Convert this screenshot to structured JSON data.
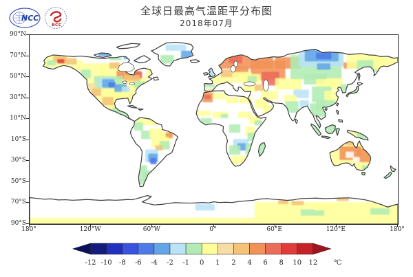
{
  "header": {
    "title": "全球日最高气温距平分布图",
    "subtitle": "2018年07月",
    "logo_ncc": "NCC",
    "logo_bcc": "BCC"
  },
  "axes": {
    "lat_labels": [
      "90°N",
      "70°N",
      "50°N",
      "30°N",
      "10°N",
      "10°S",
      "30°S",
      "50°S",
      "70°S",
      "90°S"
    ],
    "lat_values": [
      90,
      70,
      50,
      30,
      10,
      -10,
      -30,
      -50,
      -70,
      -90
    ],
    "lon_labels": [
      "180°",
      "120°W",
      "60°W",
      "0°",
      "60°E",
      "120°E",
      "180°"
    ],
    "lon_values": [
      -180,
      -120,
      -60,
      0,
      60,
      120,
      180
    ]
  },
  "colorbar": {
    "unit": "℃",
    "tick_labels": [
      "-12",
      "-10",
      "-8",
      "-6",
      "-4",
      "-2",
      "-1",
      "0",
      "1",
      "2",
      "4",
      "6",
      "8",
      "10",
      "12"
    ],
    "levels": [
      -12,
      -10,
      -8,
      -6,
      -4,
      -2,
      -1,
      0,
      1,
      2,
      4,
      6,
      8,
      10,
      12
    ],
    "colors": [
      "#131c7e",
      "#2230bf",
      "#3952e0",
      "#4e7ae8",
      "#63a6e8",
      "#b9e3f6",
      "#b2ecb4",
      "#ffff99",
      "#f6dda4",
      "#f5c378",
      "#f29257",
      "#ec6c5a",
      "#e13c39",
      "#c52127"
    ],
    "arrow_low": "#0a1260",
    "arrow_high": "#a21320"
  },
  "chart_data": {
    "type": "heatmap",
    "title": "全球日最高气温距平分布图",
    "subtitle": "2018年07月",
    "unit": "°C anomaly",
    "projection": "equirectangular",
    "lon_range": [
      -180,
      180
    ],
    "lat_range": [
      -90,
      90
    ],
    "legend_levels": [
      -12,
      -10,
      -8,
      -6,
      -4,
      -2,
      -1,
      0,
      1,
      2,
      4,
      6,
      8,
      10,
      12
    ],
    "cells": [
      [
        -168,
        71,
        26,
        12,
        0.5
      ],
      [
        -128,
        63,
        22,
        12,
        0.5
      ],
      [
        -112,
        63,
        30,
        12,
        0.5
      ],
      [
        -140,
        66,
        12,
        10,
        0.5
      ],
      [
        -125,
        50,
        60,
        26,
        0.8
      ],
      [
        -105,
        25,
        15,
        8,
        0.5
      ],
      [
        -66,
        58,
        9,
        9,
        0.5
      ],
      [
        -163,
        66,
        9,
        5,
        -0.8
      ],
      [
        -157,
        70,
        13,
        5,
        3
      ],
      [
        -153,
        67,
        7,
        4,
        8.5
      ],
      [
        -146,
        68,
        12,
        6,
        3
      ],
      [
        -132,
        79,
        11,
        5,
        10.5
      ],
      [
        -134,
        74,
        8,
        4,
        6.5
      ],
      [
        -113,
        77,
        24,
        7,
        -2.5
      ],
      [
        -88,
        74,
        16,
        7,
        -2.5
      ],
      [
        -102,
        71,
        12,
        5,
        -0.8
      ],
      [
        -130,
        57,
        10,
        8,
        -0.8
      ],
      [
        -102,
        64,
        10,
        6,
        3
      ],
      [
        -95,
        56,
        24,
        8,
        4.5
      ],
      [
        -79,
        55,
        9,
        6,
        6.5
      ],
      [
        -88,
        52,
        16,
        6,
        3
      ],
      [
        -117,
        51,
        28,
        12,
        -0.8
      ],
      [
        -113,
        49,
        14,
        8,
        -1.5
      ],
      [
        -109,
        48,
        12,
        8,
        -3
      ],
      [
        -103,
        45,
        7,
        5,
        -4.5
      ],
      [
        -97,
        43,
        12,
        8,
        -3
      ],
      [
        -90,
        41,
        8,
        6,
        -1.5
      ],
      [
        -124,
        44,
        9,
        12,
        1.5
      ],
      [
        -119,
        39,
        9,
        7,
        2.5
      ],
      [
        -106,
        36,
        24,
        10,
        0.5
      ],
      [
        -78,
        46,
        10,
        6,
        -0.8
      ],
      [
        -83,
        31,
        6,
        6,
        0.5
      ],
      [
        -109,
        31,
        11,
        8,
        3
      ],
      [
        -99,
        21,
        9,
        5,
        -0.8
      ],
      [
        -92,
        18,
        11,
        7,
        -0.8
      ],
      [
        -47,
        81,
        20,
        6,
        -1.5
      ],
      [
        -52,
        71,
        13,
        8,
        -0.8
      ],
      [
        -32,
        75,
        11,
        8,
        -2.5
      ],
      [
        -76,
        12,
        22,
        8,
        0.5
      ],
      [
        -78,
        7,
        9,
        8,
        -0.8
      ],
      [
        -71,
        -1,
        10,
        8,
        -0.8
      ],
      [
        -63,
        1,
        13,
        9,
        0.5
      ],
      [
        -53,
        -2,
        13,
        8,
        0.5
      ],
      [
        -47,
        -3,
        7,
        5,
        4.5
      ],
      [
        -61,
        -7,
        17,
        10,
        0.5
      ],
      [
        -53,
        -11,
        10,
        8,
        -0.8
      ],
      [
        -57,
        -15,
        7,
        5,
        3
      ],
      [
        -67,
        -19,
        13,
        12,
        -1.5
      ],
      [
        -64,
        -23,
        9,
        8,
        -3
      ],
      [
        -62,
        -27,
        6,
        6,
        -4.5
      ],
      [
        -74,
        -34,
        9,
        18,
        -0.8
      ],
      [
        -69,
        -39,
        9,
        12,
        -0.8
      ],
      [
        -11,
        35,
        10,
        9,
        5
      ],
      [
        -9,
        33,
        6,
        4,
        6.5
      ],
      [
        -1,
        35,
        13,
        6,
        0.5
      ],
      [
        -8,
        39,
        9,
        4,
        1.5
      ],
      [
        12,
        31,
        12,
        6,
        0.5
      ],
      [
        25,
        31,
        12,
        6,
        0.5
      ],
      [
        -16,
        18,
        13,
        5,
        0.5
      ],
      [
        -1,
        17,
        15,
        6,
        0.5
      ],
      [
        7,
        15,
        7,
        4,
        -0.8
      ],
      [
        24,
        17,
        13,
        6,
        0.5
      ],
      [
        -13,
        11,
        11,
        6,
        -0.8
      ],
      [
        35,
        13,
        12,
        8,
        0.5
      ],
      [
        40,
        9,
        7,
        5,
        -0.8
      ],
      [
        15,
        5,
        11,
        8,
        -0.8
      ],
      [
        31,
        3,
        9,
        9,
        0.5
      ],
      [
        33,
        -3,
        9,
        8,
        -0.8
      ],
      [
        19,
        -9,
        15,
        9,
        -1.5
      ],
      [
        23,
        -13,
        9,
        7,
        -3
      ],
      [
        15,
        -15,
        11,
        9,
        -0.8
      ],
      [
        31,
        -13,
        9,
        11,
        -0.8
      ],
      [
        17,
        -25,
        14,
        8,
        0.5
      ],
      [
        44,
        -13,
        6,
        13,
        -0.8
      ],
      [
        -9,
        44,
        10,
        4,
        -0.8
      ],
      [
        -7,
        59,
        10,
        10,
        -1.5
      ],
      [
        -1,
        52,
        19,
        9,
        0.5
      ],
      [
        7,
        57,
        19,
        7,
        2.5
      ],
      [
        4,
        71,
        26,
        13,
        4.5
      ],
      [
        15,
        70,
        13,
        7,
        6.5
      ],
      [
        30,
        71,
        28,
        13,
        5.5
      ],
      [
        52,
        78,
        13,
        7,
        6.5
      ],
      [
        36,
        66,
        34,
        19,
        4.5
      ],
      [
        47,
        55,
        17,
        13,
        6.5
      ],
      [
        60,
        69,
        26,
        11,
        4
      ],
      [
        19,
        60,
        15,
        7,
        4
      ],
      [
        18,
        55,
        19,
        10,
        0.5
      ],
      [
        27,
        53,
        19,
        9,
        0.5
      ],
      [
        33,
        51,
        9,
        6,
        -0.8
      ],
      [
        27,
        42,
        16,
        6,
        0.5
      ],
      [
        40,
        43,
        9,
        6,
        2.5
      ],
      [
        46,
        37,
        17,
        9,
        0.5
      ],
      [
        40,
        29,
        13,
        9,
        0.5
      ],
      [
        48,
        23,
        11,
        9,
        0.5
      ],
      [
        60,
        49,
        26,
        11,
        0.5
      ],
      [
        75,
        71,
        50,
        23,
        -0.8
      ],
      [
        83,
        77,
        44,
        17,
        -1.5
      ],
      [
        89,
        76,
        33,
        11,
        -3
      ],
      [
        100,
        73,
        15,
        6,
        -4.5
      ],
      [
        101,
        63,
        13,
        6,
        -3
      ],
      [
        127,
        64,
        13,
        6,
        4.5
      ],
      [
        148,
        67,
        13,
        6,
        -1.5
      ],
      [
        130,
        72,
        35,
        14,
        0.5
      ],
      [
        140,
        66,
        21,
        11,
        -0.8
      ],
      [
        156,
        69,
        26,
        12,
        0.5
      ],
      [
        88,
        53,
        23,
        10,
        -0.8
      ],
      [
        100,
        48,
        19,
        9,
        0.5
      ],
      [
        110,
        49,
        16,
        11,
        0.5
      ],
      [
        124,
        43,
        9,
        7,
        -0.8
      ],
      [
        96,
        41,
        19,
        15,
        -0.8
      ],
      [
        78,
        38,
        15,
        8,
        -1.5
      ],
      [
        108,
        37,
        15,
        11,
        0.5
      ],
      [
        100,
        28,
        19,
        10,
        -0.8
      ],
      [
        68,
        33,
        13,
        6,
        0.5
      ],
      [
        70,
        27,
        13,
        11,
        -0.8
      ],
      [
        84,
        28,
        9,
        7,
        -1.5
      ],
      [
        94,
        25,
        15,
        13,
        -0.8
      ],
      [
        131,
        44,
        12,
        10,
        -0.8
      ],
      [
        96,
        6,
        11,
        10,
        -0.8
      ],
      [
        109,
        5,
        12,
        10,
        -0.8
      ],
      [
        119,
        2,
        6,
        8,
        -0.8
      ],
      [
        105,
        -5,
        10,
        4,
        -0.8
      ],
      [
        119,
        20,
        8,
        13,
        -0.8
      ],
      [
        132,
        -1,
        13,
        6,
        0.5
      ],
      [
        140,
        -3,
        11,
        6,
        -0.8
      ],
      [
        112,
        -11,
        43,
        29,
        0.8
      ],
      [
        129,
        -11,
        9,
        4,
        3
      ],
      [
        123,
        -16,
        21,
        13,
        4.5
      ],
      [
        140,
        -18,
        13,
        13,
        4.5
      ],
      [
        129,
        -21,
        8,
        6,
        "w"
      ],
      [
        136,
        -26,
        7,
        5,
        "w"
      ],
      [
        145,
        -34,
        7,
        6,
        -0.8
      ],
      [
        144,
        -40,
        5,
        4,
        -0.8
      ],
      [
        166,
        -39,
        11,
        9,
        -0.8
      ],
      [
        -180,
        -84,
        360,
        6,
        0.5
      ],
      [
        40,
        -69,
        140,
        16,
        0.5
      ],
      [
        -18,
        -71,
        19,
        6,
        -1.5
      ],
      [
        63,
        -67,
        10,
        4,
        3
      ],
      [
        76,
        -68,
        12,
        4,
        3
      ],
      [
        120,
        -64,
        12,
        4,
        3
      ],
      [
        85,
        -76,
        23,
        6,
        -0.8
      ],
      [
        98,
        -72,
        18,
        5,
        0.8
      ],
      [
        153,
        -75,
        19,
        6,
        -0.8
      ],
      [
        -64,
        -63,
        6,
        8,
        -0.8
      ]
    ]
  }
}
